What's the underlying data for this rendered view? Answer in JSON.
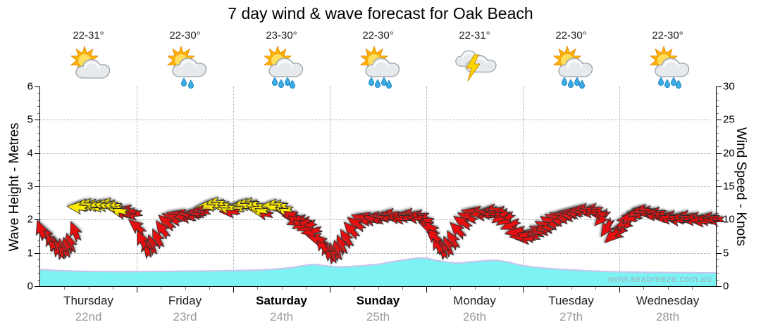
{
  "title": "7 day wind & wave forecast for Oak Beach",
  "watermark": "www.seabreeze.com.au",
  "axes": {
    "left": {
      "label": "Wave Height - Metres",
      "ticks": [
        0,
        1,
        2,
        3,
        4,
        5,
        6
      ],
      "max": 6
    },
    "right": {
      "label": "Wind Speed - Knots",
      "ticks": [
        0,
        5,
        10,
        15,
        20,
        25,
        30
      ],
      "max": 30
    }
  },
  "days": [
    {
      "name": "Thursday",
      "date": "22nd",
      "temp": "22-31°",
      "icon": "partly-cloudy",
      "bold": false
    },
    {
      "name": "Friday",
      "date": "23rd",
      "temp": "22-30°",
      "icon": "shower-light",
      "bold": false
    },
    {
      "name": "Saturday",
      "date": "24th",
      "temp": "23-30°",
      "icon": "showers",
      "bold": true
    },
    {
      "name": "Sunday",
      "date": "25th",
      "temp": "22-30°",
      "icon": "showers",
      "bold": true
    },
    {
      "name": "Monday",
      "date": "26th",
      "temp": "22-31°",
      "icon": "thunderstorm",
      "bold": false
    },
    {
      "name": "Tuesday",
      "date": "27th",
      "temp": "22-30°",
      "icon": "showers",
      "bold": false
    },
    {
      "name": "Wednesday",
      "date": "28th",
      "temp": "22-30°",
      "icon": "showers",
      "bold": false
    }
  ],
  "colors": {
    "arrow_red": "#E60F0F",
    "arrow_yellow": "#FFEB00",
    "arrow_outline": "#2a2a2a",
    "wave_fill": "#7DF2F2",
    "wave_stroke": "#C9C2EE",
    "grid": "#aaaaaa",
    "date_grey": "#999999"
  },
  "chart_data": {
    "type": "combo",
    "x_axis": {
      "unit": "days",
      "categories": [
        "Thursday 22nd",
        "Friday 23rd",
        "Saturday 24th",
        "Sunday 25th",
        "Monday 26th",
        "Tuesday 27th",
        "Wednesday 28th"
      ]
    },
    "left_axis": {
      "label": "Wave Height - Metres",
      "range": [
        0,
        6
      ]
    },
    "right_axis": {
      "label": "Wind Speed - Knots",
      "range": [
        0,
        30
      ]
    },
    "grid": "dotted, horizontal at 1-5 m, vertical at day boundaries",
    "wave_series": {
      "name": "Wave Height (m)",
      "style": "area",
      "points": [
        [
          0,
          0.5
        ],
        [
          0.3,
          0.46
        ],
        [
          0.7,
          0.44
        ],
        [
          1.0,
          0.44
        ],
        [
          1.4,
          0.45
        ],
        [
          1.8,
          0.46
        ],
        [
          2.0,
          0.47
        ],
        [
          2.3,
          0.49
        ],
        [
          2.6,
          0.56
        ],
        [
          2.8,
          0.65
        ],
        [
          2.95,
          0.62
        ],
        [
          3.1,
          0.58
        ],
        [
          3.3,
          0.61
        ],
        [
          3.5,
          0.66
        ],
        [
          3.7,
          0.76
        ],
        [
          3.95,
          0.85
        ],
        [
          4.1,
          0.78
        ],
        [
          4.3,
          0.7
        ],
        [
          4.5,
          0.74
        ],
        [
          4.7,
          0.78
        ],
        [
          4.85,
          0.72
        ],
        [
          5.0,
          0.62
        ],
        [
          5.2,
          0.55
        ],
        [
          5.5,
          0.49
        ],
        [
          5.8,
          0.45
        ],
        [
          6.2,
          0.42
        ],
        [
          6.6,
          0.41
        ],
        [
          7.0,
          0.4
        ]
      ]
    },
    "wind_series": {
      "name": "Wind Speed & Direction (knots)",
      "style": "arrows",
      "note": "x in days from Thursday 00:00, dir in degrees (0=pointing right/E, 90=down/S, 180=left/W, 270=up/N), c = r(red) | y(yellow)",
      "arrows": [
        [
          0.01,
          8.5,
          250,
          "r"
        ],
        [
          0.06,
          7.8,
          240,
          "r"
        ],
        [
          0.11,
          6.8,
          250,
          "r"
        ],
        [
          0.16,
          6.0,
          258,
          "r"
        ],
        [
          0.21,
          5.6,
          264,
          "r"
        ],
        [
          0.26,
          5.8,
          260,
          "r"
        ],
        [
          0.31,
          6.4,
          252,
          "r"
        ],
        [
          0.36,
          8.2,
          248,
          "r"
        ],
        [
          0.39,
          11.8,
          186,
          "y"
        ],
        [
          0.44,
          12.2,
          182,
          "y"
        ],
        [
          0.49,
          12.3,
          180,
          "y"
        ],
        [
          0.54,
          12.2,
          180,
          "y"
        ],
        [
          0.59,
          12.0,
          178,
          "y"
        ],
        [
          0.64,
          12.2,
          182,
          "y"
        ],
        [
          0.69,
          12.4,
          184,
          "y"
        ],
        [
          0.74,
          12.0,
          180,
          "y"
        ],
        [
          0.8,
          11.4,
          192,
          "y"
        ],
        [
          0.85,
          11.1,
          200,
          "r"
        ],
        [
          0.9,
          11.4,
          194,
          "r"
        ],
        [
          0.95,
          10.8,
          172,
          "r"
        ],
        [
          1.0,
          9.0,
          220,
          "r"
        ],
        [
          1.05,
          7.0,
          245,
          "r"
        ],
        [
          1.1,
          5.8,
          258,
          "r"
        ],
        [
          1.15,
          6.2,
          254,
          "r"
        ],
        [
          1.21,
          7.2,
          244,
          "r"
        ],
        [
          1.26,
          8.6,
          234,
          "r"
        ],
        [
          1.31,
          9.6,
          222,
          "r"
        ],
        [
          1.36,
          10.1,
          210,
          "r"
        ],
        [
          1.41,
          10.6,
          200,
          "r"
        ],
        [
          1.46,
          10.8,
          194,
          "r"
        ],
        [
          1.51,
          10.5,
          190,
          "r"
        ],
        [
          1.56,
          10.8,
          186,
          "r"
        ],
        [
          1.61,
          11.0,
          182,
          "r"
        ],
        [
          1.66,
          11.2,
          180,
          "r"
        ],
        [
          1.71,
          11.8,
          180,
          "y"
        ],
        [
          1.76,
          12.2,
          178,
          "y"
        ],
        [
          1.81,
          12.5,
          180,
          "y"
        ],
        [
          1.86,
          12.2,
          182,
          "y"
        ],
        [
          1.91,
          11.8,
          184,
          "y"
        ],
        [
          1.96,
          11.2,
          180,
          "r"
        ],
        [
          2.01,
          11.6,
          182,
          "y"
        ],
        [
          2.06,
          12.0,
          180,
          "y"
        ],
        [
          2.11,
          12.3,
          178,
          "y"
        ],
        [
          2.16,
          12.4,
          180,
          "y"
        ],
        [
          2.21,
          12.0,
          182,
          "y"
        ],
        [
          2.26,
          11.4,
          186,
          "y"
        ],
        [
          2.31,
          11.0,
          192,
          "r"
        ],
        [
          2.36,
          11.8,
          182,
          "y"
        ],
        [
          2.41,
          12.2,
          180,
          "y"
        ],
        [
          2.46,
          12.0,
          180,
          "y"
        ],
        [
          2.51,
          11.6,
          184,
          "y"
        ],
        [
          2.56,
          11.0,
          190,
          "r"
        ],
        [
          2.61,
          10.4,
          188,
          "r"
        ],
        [
          2.66,
          9.8,
          158,
          "r"
        ],
        [
          2.71,
          9.4,
          150,
          "r"
        ],
        [
          2.76,
          9.0,
          156,
          "r"
        ],
        [
          2.81,
          8.2,
          168,
          "r"
        ],
        [
          2.86,
          7.2,
          196,
          "r"
        ],
        [
          2.92,
          6.2,
          235,
          "r"
        ],
        [
          2.97,
          5.4,
          252,
          "r"
        ],
        [
          3.02,
          5.0,
          260,
          "r"
        ],
        [
          3.07,
          5.4,
          256,
          "r"
        ],
        [
          3.12,
          6.2,
          248,
          "r"
        ],
        [
          3.17,
          7.2,
          238,
          "r"
        ],
        [
          3.22,
          8.4,
          228,
          "r"
        ],
        [
          3.27,
          9.4,
          216,
          "r"
        ],
        [
          3.32,
          10.0,
          206,
          "r"
        ],
        [
          3.37,
          10.3,
          196,
          "r"
        ],
        [
          3.42,
          10.0,
          190,
          "r"
        ],
        [
          3.47,
          10.4,
          186,
          "r"
        ],
        [
          3.52,
          10.2,
          182,
          "r"
        ],
        [
          3.57,
          10.5,
          180,
          "r"
        ],
        [
          3.62,
          10.8,
          182,
          "r"
        ],
        [
          3.67,
          10.4,
          186,
          "r"
        ],
        [
          3.72,
          10.2,
          180,
          "r"
        ],
        [
          3.77,
          10.5,
          178,
          "r"
        ],
        [
          3.82,
          10.8,
          180,
          "r"
        ],
        [
          3.87,
          10.3,
          184,
          "r"
        ],
        [
          3.92,
          10.6,
          180,
          "r"
        ],
        [
          3.97,
          10.0,
          190,
          "r"
        ],
        [
          4.02,
          9.0,
          202,
          "r"
        ],
        [
          4.07,
          7.6,
          222,
          "r"
        ],
        [
          4.12,
          6.2,
          244,
          "r"
        ],
        [
          4.17,
          5.6,
          256,
          "r"
        ],
        [
          4.22,
          6.0,
          250,
          "r"
        ],
        [
          4.27,
          7.0,
          240,
          "r"
        ],
        [
          4.32,
          8.4,
          226,
          "r"
        ],
        [
          4.37,
          9.6,
          214,
          "r"
        ],
        [
          4.42,
          10.4,
          204,
          "r"
        ],
        [
          4.47,
          11.0,
          196,
          "r"
        ],
        [
          4.52,
          11.2,
          190,
          "r"
        ],
        [
          4.57,
          10.8,
          186,
          "r"
        ],
        [
          4.62,
          11.0,
          182,
          "r"
        ],
        [
          4.67,
          11.4,
          180,
          "r"
        ],
        [
          4.72,
          11.0,
          152,
          "r"
        ],
        [
          4.77,
          10.5,
          142,
          "r"
        ],
        [
          4.82,
          10.0,
          146,
          "r"
        ],
        [
          4.87,
          9.2,
          156,
          "r"
        ],
        [
          4.92,
          8.2,
          166,
          "r"
        ],
        [
          4.97,
          7.6,
          172,
          "r"
        ],
        [
          5.02,
          7.2,
          178,
          "r"
        ],
        [
          5.07,
          7.5,
          184,
          "r"
        ],
        [
          5.12,
          8.0,
          190,
          "r"
        ],
        [
          5.17,
          8.5,
          200,
          "r"
        ],
        [
          5.22,
          9.0,
          210,
          "r"
        ],
        [
          5.27,
          9.6,
          214,
          "r"
        ],
        [
          5.32,
          10.0,
          210,
          "r"
        ],
        [
          5.37,
          10.3,
          206,
          "r"
        ],
        [
          5.42,
          10.6,
          200,
          "r"
        ],
        [
          5.47,
          10.9,
          194,
          "r"
        ],
        [
          5.52,
          11.1,
          190,
          "r"
        ],
        [
          5.57,
          11.3,
          186,
          "r"
        ],
        [
          5.62,
          11.5,
          182,
          "r"
        ],
        [
          5.67,
          11.2,
          180,
          "r"
        ],
        [
          5.72,
          11.5,
          182,
          "r"
        ],
        [
          5.77,
          11.0,
          186,
          "r"
        ],
        [
          5.82,
          10.2,
          132,
          "r"
        ],
        [
          5.87,
          8.8,
          122,
          "r"
        ],
        [
          5.93,
          7.6,
          136,
          "r"
        ],
        [
          5.98,
          7.9,
          148,
          "r"
        ],
        [
          6.03,
          9.0,
          164,
          "r"
        ],
        [
          6.08,
          10.0,
          174,
          "r"
        ],
        [
          6.13,
          10.6,
          180,
          "r"
        ],
        [
          6.18,
          11.0,
          183,
          "r"
        ],
        [
          6.23,
          11.4,
          186,
          "r"
        ],
        [
          6.28,
          11.2,
          188,
          "r"
        ],
        [
          6.33,
          10.8,
          182,
          "r"
        ],
        [
          6.38,
          11.0,
          180,
          "r"
        ],
        [
          6.43,
          10.5,
          178,
          "r"
        ],
        [
          6.48,
          10.2,
          180,
          "r"
        ],
        [
          6.53,
          10.5,
          182,
          "r"
        ],
        [
          6.58,
          10.0,
          186,
          "r"
        ],
        [
          6.63,
          10.2,
          180,
          "r"
        ],
        [
          6.68,
          10.5,
          178,
          "r"
        ],
        [
          6.73,
          10.0,
          180,
          "r"
        ],
        [
          6.78,
          10.2,
          183,
          "r"
        ],
        [
          6.83,
          9.8,
          180,
          "r"
        ],
        [
          6.88,
          10.0,
          182,
          "r"
        ],
        [
          6.93,
          10.2,
          180,
          "r"
        ],
        [
          6.98,
          10.0,
          180,
          "r"
        ]
      ]
    }
  }
}
